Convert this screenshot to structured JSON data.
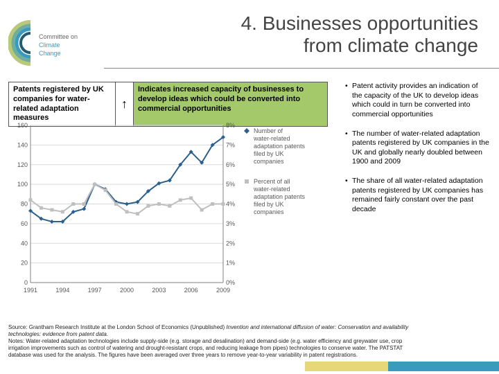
{
  "logo": {
    "text_top": "Committee on",
    "text_bottom": "Climate Change",
    "arc_colors": [
      "#b9c97a",
      "#6fae9c",
      "#3a9bbf",
      "#245b6d"
    ]
  },
  "title_line1": "4. Businesses opportunities",
  "title_line2": "from climate change",
  "box_left": "Patents registered by UK companies for water-related adaptation measures",
  "arrow_glyph": "↑",
  "box_right": "Indicates increased capacity of businesses to develop ideas which could be converted into commercial opportunities",
  "bullets": [
    "Patent activity provides an indication of the capacity of the UK to develop ideas which could in turn be converted into commercial opportunities",
    "The number of water-related adaptation patents registered by UK companies in the UK and globally nearly doubled between 1900 and 2009",
    "The share of all water-related adaptation patents registered by UK companies has remained fairly constant over the past decade"
  ],
  "chart": {
    "type": "line-dual-axis",
    "plot_background": "#ffffff",
    "grid_color": "#d9d9d9",
    "axis_color": "#808080",
    "tick_fontsize": 9,
    "x_categories": [
      "1991",
      "1992",
      "1993",
      "1994",
      "1995",
      "1996",
      "1997",
      "1998",
      "1999",
      "2000",
      "2001",
      "2002",
      "2003",
      "2004",
      "2005",
      "2006",
      "2007",
      "2008",
      "2009"
    ],
    "x_tick_labels": [
      "1991",
      "1994",
      "1997",
      "2000",
      "2003",
      "2006",
      "2009"
    ],
    "y_left": {
      "min": 0,
      "max": 160,
      "step": 20
    },
    "y_right": {
      "min": 0,
      "max": 0.08,
      "step": 0.01,
      "labels": [
        "0%",
        "1%",
        "2%",
        "3%",
        "4%",
        "5%",
        "6%",
        "7%",
        "8%"
      ]
    },
    "series": [
      {
        "name": "Number of water-related adaptation patents filed by UK companies",
        "axis": "left",
        "color": "#2b5f8e",
        "marker": "diamond",
        "marker_size": 6,
        "line_width": 2,
        "values": [
          73,
          65,
          62,
          62,
          72,
          75,
          100,
          95,
          82,
          80,
          82,
          93,
          101,
          104,
          120,
          133,
          122,
          140,
          148
        ]
      },
      {
        "name": "Percent of all water-related adaptation patents filed by UK companies",
        "axis": "right",
        "color": "#bfbfbf",
        "marker": "square",
        "marker_size": 5,
        "line_width": 2,
        "values": [
          0.042,
          0.038,
          0.037,
          0.036,
          0.04,
          0.04,
          0.05,
          0.047,
          0.04,
          0.036,
          0.035,
          0.039,
          0.04,
          0.039,
          0.042,
          0.043,
          0.037,
          0.04,
          0.04
        ]
      }
    ],
    "legend": {
      "position": "right",
      "fontsize": 9,
      "text_color": "#5a5a5a",
      "marker_label_gap": 6
    }
  },
  "footer": {
    "source_prefix": "Source: Grantham Research Institute at the London School of Economics (Unpublished) ",
    "source_title": "Invention and international diffusion of water: Conservation and availability technologies: evidence from patent data.",
    "notes": "Notes: Water-related adaptation technologies include supply-side (e.g. storage and desalination) and demand-side (e.g. water efficiency and greywater use, crop irrigation improvements such as control of watering and drought-resistant crops, and reducing leakage from pipes) technologies to conserve water. The PATSTAT database was used for the analysis. The figures have been averaged over three years to remove year-to-year variability in patent registrations."
  }
}
